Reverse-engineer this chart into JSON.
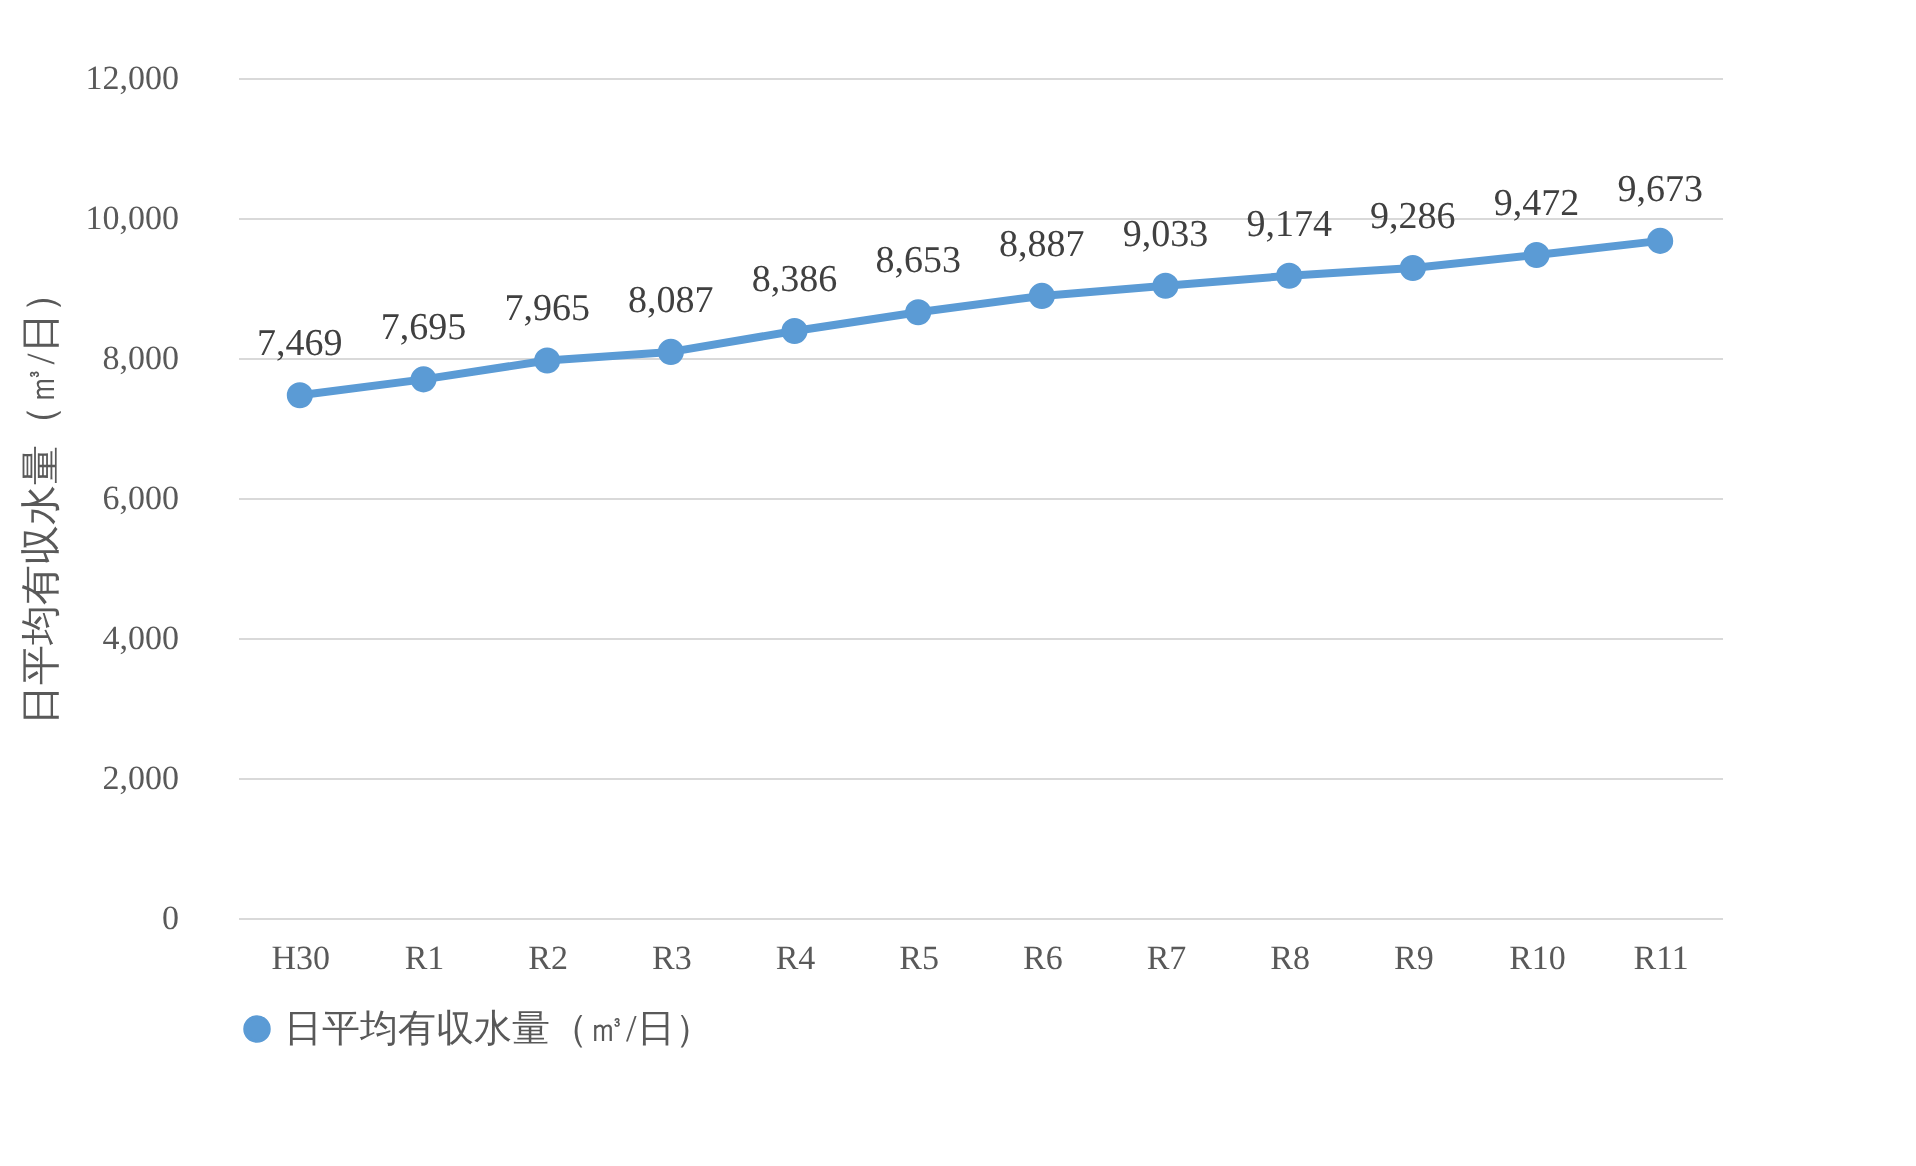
{
  "chart_data": {
    "type": "line",
    "ylabel": "日平均有収水量（㎥/日）",
    "categories": [
      "H30",
      "R1",
      "R2",
      "R3",
      "R4",
      "R5",
      "R6",
      "R7",
      "R8",
      "R9",
      "R10",
      "R11"
    ],
    "series": [
      {
        "name": "日平均有収水量（㎥/日）",
        "color": "#5b9bd5",
        "values": [
          7469,
          7695,
          7965,
          8087,
          8386,
          8653,
          8887,
          9033,
          9174,
          9286,
          9472,
          9673
        ],
        "value_labels": [
          "7,469",
          "7,695",
          "7,965",
          "8,087",
          "8,386",
          "8,653",
          "8,887",
          "9,033",
          "9,174",
          "9,286",
          "9,472",
          "9,673"
        ]
      }
    ],
    "ylim": [
      0,
      12000
    ],
    "yticks": [
      0,
      {
        "value": 2000,
        "label": "2,000"
      },
      {
        "value": 4000,
        "label": "4,000"
      },
      {
        "value": 6000,
        "label": "6,000"
      },
      {
        "value": 8000,
        "label": "8,000"
      },
      {
        "value": 10000,
        "label": "10,000"
      },
      {
        "value": 12000,
        "label": "12,000"
      }
    ],
    "grid": "y",
    "legend": "bottom",
    "marker": "circle",
    "line_style": "solid"
  }
}
